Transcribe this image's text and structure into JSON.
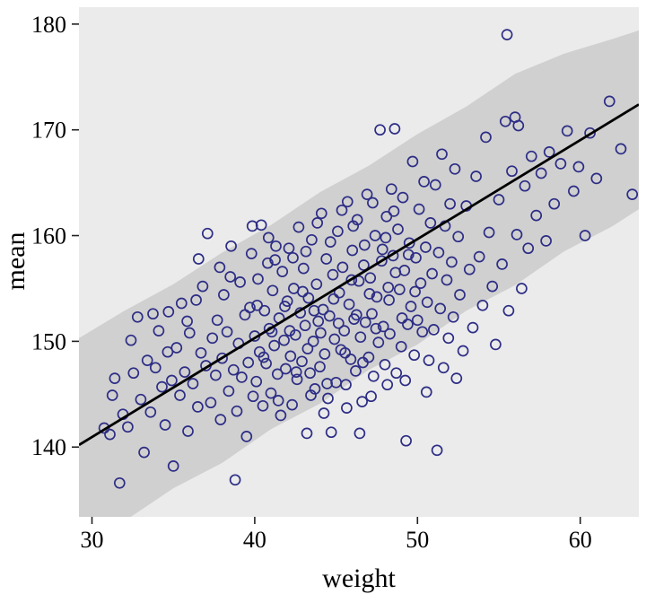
{
  "chart_data": {
    "type": "scatter",
    "title": "",
    "xlabel": "weight",
    "ylabel": "mean",
    "xlim": [
      29.2,
      63.6
    ],
    "ylim": [
      133.4,
      181.6
    ],
    "x_ticks": [
      30,
      40,
      50,
      60
    ],
    "y_ticks": [
      140,
      150,
      160,
      170,
      180
    ],
    "grid": false,
    "legend": false,
    "panel_bg": "#ebebeb",
    "band_color": "#d0d0d0",
    "point_color": "#2d2d86",
    "line_color": "#000000",
    "regression_line": {
      "x": [
        29.2,
        63.6
      ],
      "y": [
        140.2,
        172.4
      ]
    },
    "band": {
      "x": [
        29.2,
        32.0,
        35.0,
        38.0,
        41.0,
        44.0,
        47.0,
        50.0,
        53.0,
        56.0,
        59.0,
        62.0,
        63.6
      ],
      "upper": [
        150.3,
        152.9,
        155.4,
        158.4,
        161.0,
        164.1,
        166.6,
        169.6,
        172.2,
        175.3,
        177.2,
        178.6,
        179.4
      ],
      "lower": [
        130.6,
        133.0,
        136.1,
        138.5,
        141.7,
        144.1,
        147.3,
        149.7,
        152.9,
        155.3,
        158.5,
        160.9,
        162.5
      ]
    },
    "points": [
      [
        31.1,
        141.2
      ],
      [
        31.4,
        146.5
      ],
      [
        31.7,
        136.6
      ],
      [
        31.9,
        143.1
      ],
      [
        32.2,
        141.9
      ],
      [
        32.4,
        150.1
      ],
      [
        32.8,
        152.3
      ],
      [
        33.0,
        144.5
      ],
      [
        33.2,
        139.5
      ],
      [
        33.4,
        148.2
      ],
      [
        33.6,
        143.3
      ],
      [
        33.9,
        147.5
      ],
      [
        34.1,
        151.0
      ],
      [
        34.3,
        145.7
      ],
      [
        34.5,
        142.1
      ],
      [
        34.7,
        152.8
      ],
      [
        34.9,
        146.3
      ],
      [
        35.0,
        138.2
      ],
      [
        35.2,
        149.4
      ],
      [
        35.4,
        144.9
      ],
      [
        35.5,
        153.6
      ],
      [
        35.7,
        147.1
      ],
      [
        35.9,
        141.5
      ],
      [
        36.0,
        150.8
      ],
      [
        36.2,
        146.0
      ],
      [
        36.4,
        153.9
      ],
      [
        36.5,
        143.8
      ],
      [
        36.7,
        148.9
      ],
      [
        36.8,
        155.2
      ],
      [
        37.0,
        147.7
      ],
      [
        37.1,
        160.2
      ],
      [
        37.3,
        144.2
      ],
      [
        37.4,
        150.3
      ],
      [
        37.6,
        146.8
      ],
      [
        37.7,
        152.0
      ],
      [
        37.9,
        142.6
      ],
      [
        38.0,
        148.4
      ],
      [
        38.1,
        154.4
      ],
      [
        38.3,
        150.9
      ],
      [
        38.4,
        145.3
      ],
      [
        38.5,
        156.1
      ],
      [
        38.7,
        147.3
      ],
      [
        38.8,
        136.9
      ],
      [
        38.9,
        143.4
      ],
      [
        39.0,
        149.8
      ],
      [
        39.1,
        155.6
      ],
      [
        39.2,
        146.6
      ],
      [
        39.4,
        152.5
      ],
      [
        39.5,
        141.0
      ],
      [
        39.6,
        148.0
      ],
      [
        39.7,
        153.2
      ],
      [
        39.8,
        158.3
      ],
      [
        39.9,
        144.8
      ],
      [
        40.0,
        150.5
      ],
      [
        40.1,
        146.2
      ],
      [
        40.2,
        155.9
      ],
      [
        40.3,
        149.0
      ],
      [
        40.4,
        161.0
      ],
      [
        40.5,
        143.9
      ],
      [
        40.6,
        152.9
      ],
      [
        40.7,
        147.9
      ],
      [
        40.8,
        157.4
      ],
      [
        40.9,
        151.2
      ],
      [
        41.0,
        145.1
      ],
      [
        41.1,
        154.8
      ],
      [
        41.2,
        149.6
      ],
      [
        41.3,
        159.0
      ],
      [
        41.4,
        146.9
      ],
      [
        41.5,
        152.2
      ],
      [
        41.6,
        143.0
      ],
      [
        41.7,
        156.6
      ],
      [
        41.8,
        150.1
      ],
      [
        41.9,
        147.4
      ],
      [
        42.0,
        153.8
      ],
      [
        42.1,
        158.8
      ],
      [
        42.2,
        148.6
      ],
      [
        42.3,
        144.0
      ],
      [
        42.4,
        155.0
      ],
      [
        42.5,
        150.6
      ],
      [
        42.6,
        146.4
      ],
      [
        42.7,
        160.8
      ],
      [
        42.8,
        152.7
      ],
      [
        42.9,
        148.1
      ],
      [
        43.0,
        156.9
      ],
      [
        43.1,
        151.5
      ],
      [
        43.2,
        141.3
      ],
      [
        43.3,
        154.1
      ],
      [
        43.4,
        147.0
      ],
      [
        43.5,
        159.6
      ],
      [
        43.6,
        150.0
      ],
      [
        43.7,
        145.5
      ],
      [
        43.8,
        155.4
      ],
      [
        43.9,
        151.9
      ],
      [
        44.0,
        147.6
      ],
      [
        44.1,
        162.1
      ],
      [
        44.2,
        153.0
      ],
      [
        44.3,
        148.8
      ],
      [
        44.4,
        157.8
      ],
      [
        44.5,
        144.6
      ],
      [
        44.6,
        152.4
      ],
      [
        44.7,
        141.4
      ],
      [
        44.8,
        156.3
      ],
      [
        44.9,
        150.2
      ],
      [
        45.0,
        146.1
      ],
      [
        45.1,
        160.4
      ],
      [
        45.2,
        154.6
      ],
      [
        45.3,
        149.2
      ],
      [
        45.4,
        157.0
      ],
      [
        45.5,
        151.0
      ],
      [
        45.6,
        145.9
      ],
      [
        45.7,
        163.2
      ],
      [
        45.8,
        153.5
      ],
      [
        45.9,
        148.3
      ],
      [
        46.0,
        158.6
      ],
      [
        46.1,
        152.1
      ],
      [
        46.2,
        147.2
      ],
      [
        46.3,
        161.5
      ],
      [
        46.4,
        155.7
      ],
      [
        46.5,
        150.4
      ],
      [
        46.6,
        144.3
      ],
      [
        46.7,
        157.2
      ],
      [
        46.8,
        151.8
      ],
      [
        46.9,
        163.9
      ],
      [
        47.0,
        148.5
      ],
      [
        47.1,
        156.0
      ],
      [
        47.2,
        152.6
      ],
      [
        47.3,
        146.7
      ],
      [
        47.4,
        160.0
      ],
      [
        47.5,
        154.2
      ],
      [
        47.6,
        149.9
      ],
      [
        47.7,
        170.0
      ],
      [
        47.8,
        157.6
      ],
      [
        47.9,
        151.4
      ],
      [
        48.0,
        147.8
      ],
      [
        48.1,
        161.8
      ],
      [
        48.2,
        155.1
      ],
      [
        48.3,
        150.7
      ],
      [
        48.4,
        164.4
      ],
      [
        48.5,
        158.1
      ],
      [
        48.6,
        170.1
      ],
      [
        48.7,
        147.0
      ],
      [
        48.8,
        160.6
      ],
      [
        48.9,
        154.9
      ],
      [
        49.0,
        149.5
      ],
      [
        49.1,
        163.6
      ],
      [
        49.2,
        156.7
      ],
      [
        49.3,
        140.6
      ],
      [
        49.4,
        151.6
      ],
      [
        49.5,
        159.3
      ],
      [
        49.6,
        153.3
      ],
      [
        49.7,
        167.0
      ],
      [
        49.8,
        148.7
      ],
      [
        49.9,
        157.9
      ],
      [
        50.0,
        152.0
      ],
      [
        50.1,
        162.5
      ],
      [
        50.2,
        155.5
      ],
      [
        50.3,
        150.9
      ],
      [
        50.4,
        165.1
      ],
      [
        50.5,
        158.9
      ],
      [
        50.6,
        153.7
      ],
      [
        50.7,
        148.2
      ],
      [
        50.8,
        161.2
      ],
      [
        50.9,
        156.4
      ],
      [
        51.0,
        151.1
      ],
      [
        51.1,
        164.8
      ],
      [
        51.2,
        139.7
      ],
      [
        51.3,
        158.4
      ],
      [
        51.4,
        153.1
      ],
      [
        51.5,
        167.7
      ],
      [
        51.6,
        147.5
      ],
      [
        51.7,
        160.9
      ],
      [
        51.8,
        155.8
      ],
      [
        51.9,
        150.3
      ],
      [
        52.0,
        163.0
      ],
      [
        52.1,
        157.5
      ],
      [
        52.2,
        152.3
      ],
      [
        52.3,
        166.3
      ],
      [
        52.4,
        146.5
      ],
      [
        52.5,
        159.9
      ],
      [
        52.6,
        154.4
      ],
      [
        52.8,
        149.1
      ],
      [
        53.0,
        162.8
      ],
      [
        53.2,
        156.8
      ],
      [
        53.4,
        151.3
      ],
      [
        53.6,
        165.6
      ],
      [
        53.8,
        158.0
      ],
      [
        54.0,
        153.4
      ],
      [
        54.2,
        169.3
      ],
      [
        54.4,
        160.3
      ],
      [
        54.6,
        155.2
      ],
      [
        54.8,
        149.7
      ],
      [
        55.0,
        163.4
      ],
      [
        55.2,
        157.3
      ],
      [
        55.4,
        170.8
      ],
      [
        55.5,
        179.0
      ],
      [
        55.6,
        152.9
      ],
      [
        55.8,
        166.1
      ],
      [
        56.0,
        171.2
      ],
      [
        56.1,
        160.1
      ],
      [
        56.2,
        170.4
      ],
      [
        56.4,
        155.0
      ],
      [
        56.6,
        164.7
      ],
      [
        56.8,
        158.8
      ],
      [
        57.0,
        167.5
      ],
      [
        57.3,
        161.9
      ],
      [
        57.6,
        165.9
      ],
      [
        57.9,
        159.5
      ],
      [
        58.1,
        167.9
      ],
      [
        58.4,
        163.0
      ],
      [
        58.8,
        166.8
      ],
      [
        59.2,
        169.9
      ],
      [
        59.6,
        164.2
      ],
      [
        59.9,
        166.5
      ],
      [
        60.3,
        160.0
      ],
      [
        60.6,
        169.7
      ],
      [
        61.0,
        165.4
      ],
      [
        61.8,
        172.7
      ],
      [
        62.5,
        168.2
      ],
      [
        63.2,
        163.9
      ],
      [
        40.15,
        153.4
      ],
      [
        40.55,
        148.5
      ],
      [
        41.05,
        150.9
      ],
      [
        41.45,
        144.4
      ],
      [
        41.85,
        153.3
      ],
      [
        42.15,
        151.0
      ],
      [
        42.55,
        147.1
      ],
      [
        42.95,
        154.7
      ],
      [
        43.25,
        149.3
      ],
      [
        43.65,
        152.9
      ],
      [
        44.05,
        150.8
      ],
      [
        44.45,
        146.0
      ],
      [
        44.85,
        154.0
      ],
      [
        45.15,
        151.7
      ],
      [
        45.55,
        148.9
      ],
      [
        45.95,
        155.8
      ],
      [
        46.25,
        152.5
      ],
      [
        46.65,
        148.0
      ],
      [
        47.05,
        154.5
      ],
      [
        47.45,
        151.2
      ],
      [
        47.85,
        158.7
      ],
      [
        48.25,
        153.9
      ],
      [
        48.65,
        156.5
      ],
      [
        49.05,
        152.2
      ],
      [
        49.45,
        158.2
      ],
      [
        49.85,
        154.7
      ],
      [
        42.35,
        157.9
      ],
      [
        43.15,
        158.5
      ],
      [
        43.85,
        161.2
      ],
      [
        44.65,
        159.4
      ],
      [
        45.35,
        162.4
      ],
      [
        46.05,
        160.9
      ],
      [
        46.75,
        159.1
      ],
      [
        47.25,
        163.1
      ],
      [
        48.05,
        159.8
      ],
      [
        48.55,
        162.3
      ],
      [
        44.25,
        143.2
      ],
      [
        45.65,
        143.7
      ],
      [
        46.45,
        141.3
      ],
      [
        43.45,
        144.9
      ],
      [
        47.15,
        144.8
      ],
      [
        48.15,
        145.9
      ],
      [
        49.25,
        146.3
      ],
      [
        50.55,
        145.2
      ],
      [
        41.25,
        157.7
      ],
      [
        40.85,
        159.8
      ],
      [
        39.85,
        160.9
      ],
      [
        38.55,
        159.0
      ],
      [
        37.85,
        157.0
      ],
      [
        36.55,
        157.8
      ],
      [
        35.85,
        151.9
      ],
      [
        34.65,
        149.0
      ],
      [
        33.75,
        152.6
      ],
      [
        32.55,
        147.0
      ],
      [
        31.25,
        144.9
      ],
      [
        30.75,
        141.8
      ]
    ]
  }
}
